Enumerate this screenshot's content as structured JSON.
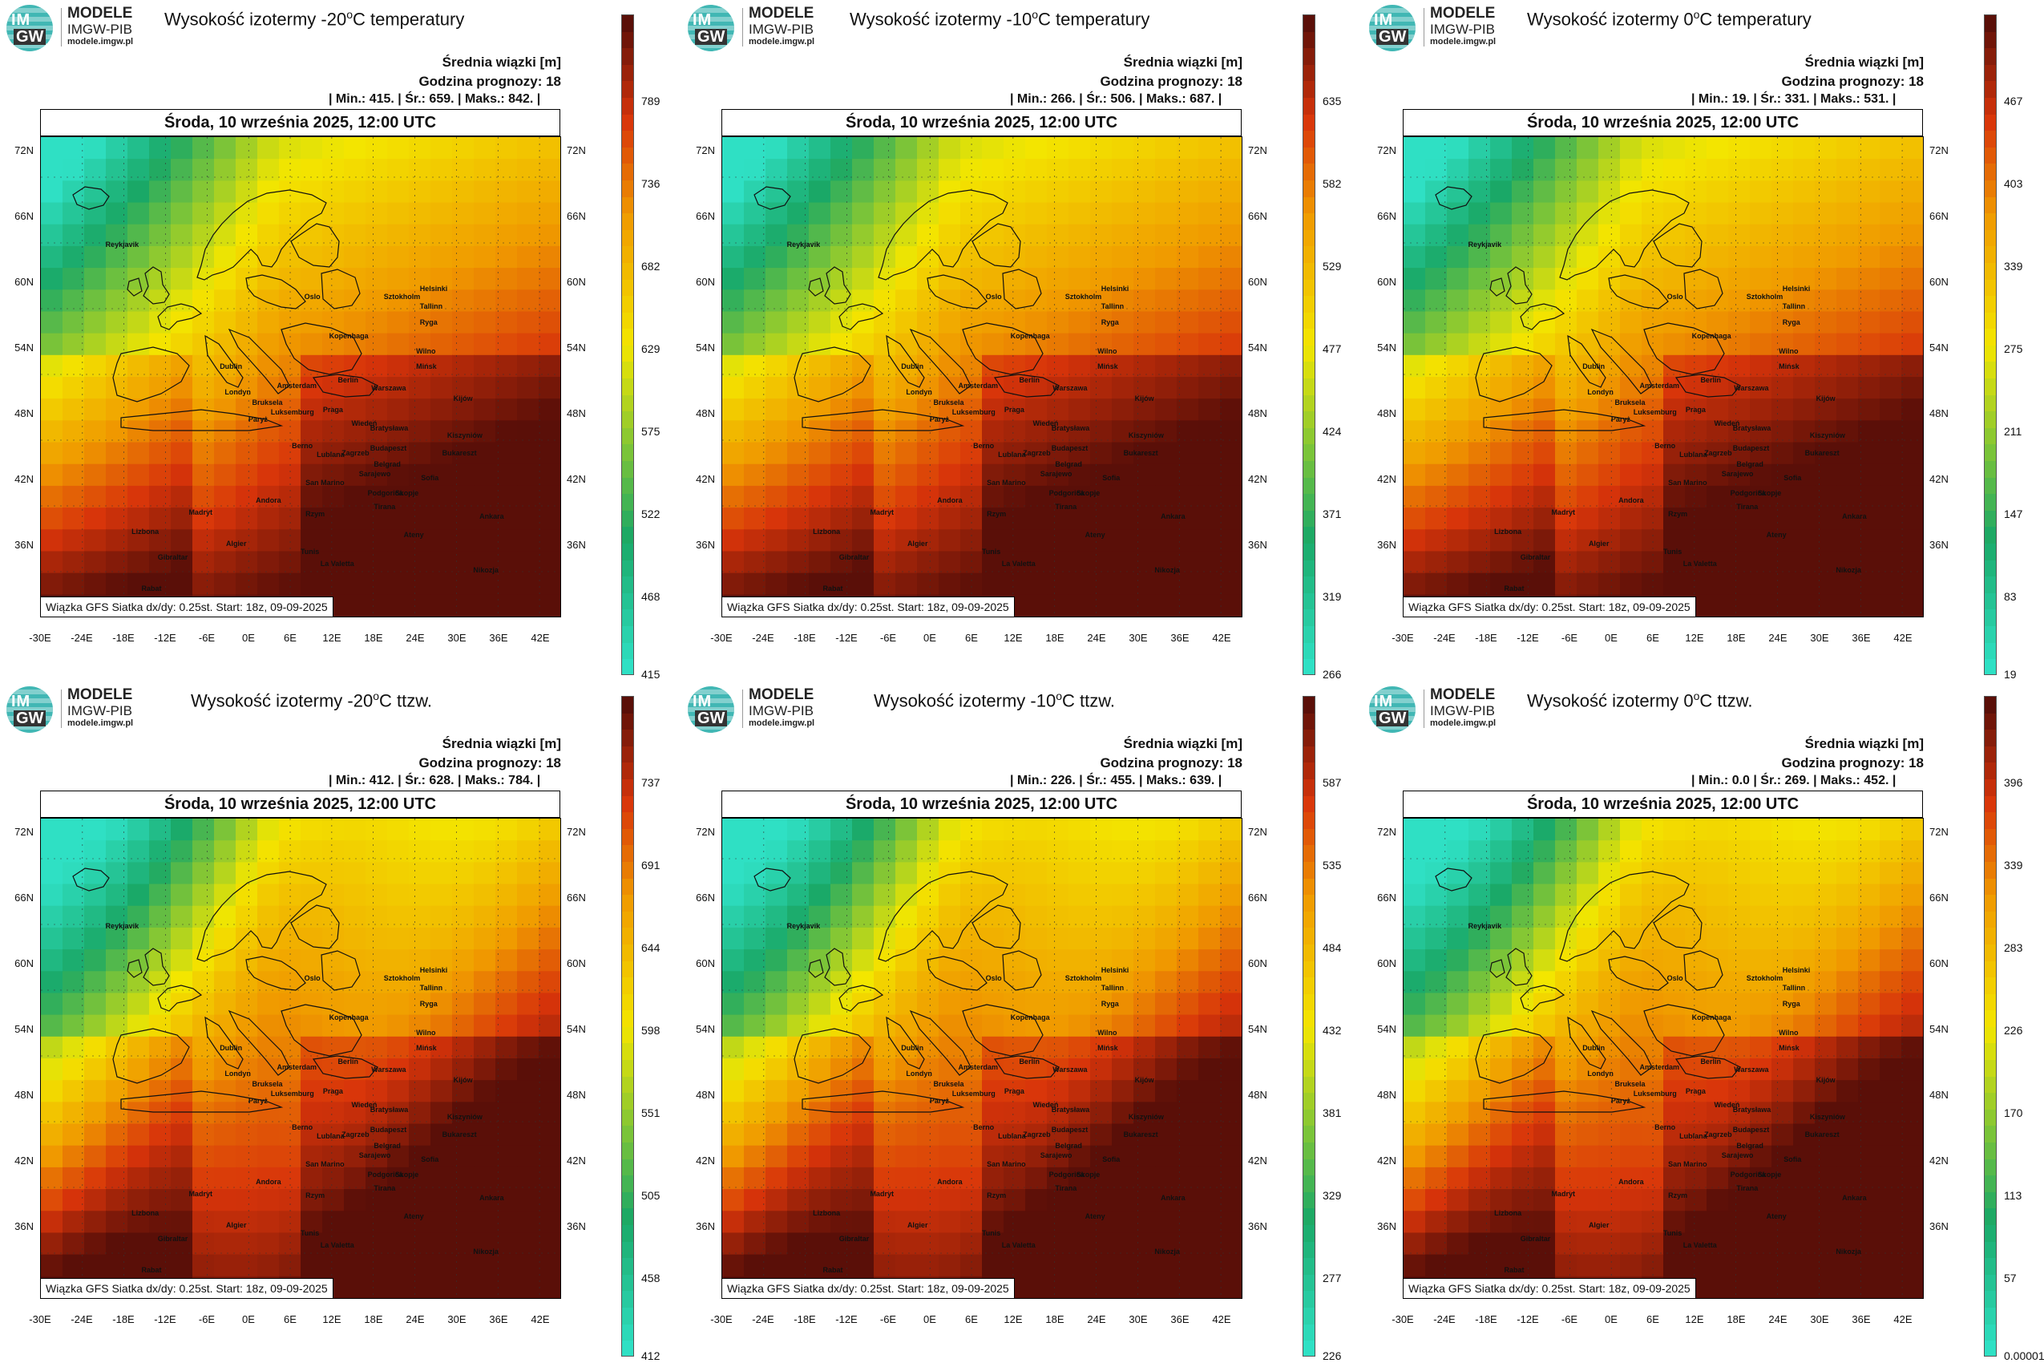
{
  "logo": {
    "line1": "MODELE",
    "line2": "IMGW-PIB",
    "line3": "modele.imgw.pl",
    "badge_top": "IM",
    "badge_bottom": "GW"
  },
  "common": {
    "meta1": "Średnia wiązki [m]",
    "meta2": "Godzina prognozy: 18",
    "date": "Środa, 10 września 2025, 12:00 UTC",
    "footnote": "Wiązka GFS Siatka dx/dy: 0.25st. Start: 18z, 09-09-2025",
    "lat_ticks": [
      "72N",
      "66N",
      "60N",
      "54N",
      "48N",
      "42N",
      "36N"
    ],
    "lon_ticks": [
      "-30E",
      "-24E",
      "-18E",
      "-12E",
      "-6E",
      "0E",
      "6E",
      "12E",
      "18E",
      "24E",
      "30E",
      "36E",
      "42E"
    ],
    "cities": [
      "Reykjavik",
      "Oslo",
      "Sztokholm",
      "Helsinki",
      "Tallinn",
      "Ryga",
      "Kopenhaga",
      "Wilno",
      "Mińsk",
      "Dublin",
      "Londyn",
      "Amsterdam",
      "Berlin",
      "Warszawa",
      "Bruksela",
      "Luksemburg",
      "Paryż",
      "Praga",
      "Kijów",
      "Wiedeń",
      "Bratysława",
      "Kiszyniów",
      "Berno",
      "Lublana",
      "Zagrzeb",
      "Budapeszt",
      "Bukareszt",
      "Belgrad",
      "Sarajewo",
      "Sofia",
      "San Marino",
      "Podgorica",
      "Skopje",
      "Tirana",
      "Andora",
      "Madryt",
      "Rzym",
      "Ateny",
      "Ankara",
      "Lizbona",
      "Gibraltar",
      "Algier",
      "Tunis",
      "La Valetta",
      "Rabat",
      "Nikozja"
    ],
    "colors": {
      "low": "#2fe0c4",
      "green": "#1aa866",
      "yellow": "#f3e600",
      "orange": "#f09a00",
      "red": "#d8340a",
      "dark": "#5a0f08"
    }
  },
  "panels": [
    {
      "title_prefix": "Wysokość izotermy -20",
      "title_suffix": "C temperatury",
      "title_sup": "o",
      "stats": "| Min.:    415. | Śr.:    659. | Maks.:    842. |",
      "cbar_ticks": [
        "789",
        "736",
        "682",
        "629",
        "575",
        "522",
        "468",
        "415"
      ]
    },
    {
      "title_prefix": "Wysokość izotermy -10",
      "title_suffix": "C temperatury",
      "title_sup": "o",
      "stats": "| Min.:    266. | Śr.:    506. | Maks.:    687. |",
      "cbar_ticks": [
        "635",
        "582",
        "529",
        "477",
        "424",
        "371",
        "319",
        "266"
      ]
    },
    {
      "title_prefix": "Wysokość izotermy 0",
      "title_suffix": "C temperatury",
      "title_sup": "o",
      "stats": "| Min.:     19. | Śr.:    331. | Maks.:    531. |",
      "cbar_ticks": [
        "467",
        "403",
        "339",
        "275",
        "211",
        "147",
        "83",
        "19"
      ]
    },
    {
      "title_prefix": "Wysokość izotermy -20",
      "title_suffix": "C ttzw.",
      "title_sup": "o",
      "stats": "| Min.:    412. | Śr.:    628. | Maks.:    784. |",
      "cbar_ticks": [
        "737",
        "691",
        "644",
        "598",
        "551",
        "505",
        "458",
        "412"
      ]
    },
    {
      "title_prefix": "Wysokość izotermy -10",
      "title_suffix": "C ttzw.",
      "title_sup": "o",
      "stats": "| Min.:    226. | Śr.:    455. | Maks.:    639. |",
      "cbar_ticks": [
        "587",
        "535",
        "484",
        "432",
        "381",
        "329",
        "277",
        "226"
      ]
    },
    {
      "title_prefix": "Wysokość izotermy 0",
      "title_suffix": "C ttzw.",
      "title_sup": "o",
      "stats": "| Min.:    0.0 | Śr.:    269. | Maks.:    452. |",
      "cbar_ticks": [
        "396",
        "339",
        "283",
        "226",
        "170",
        "113",
        "57",
        "0.00001"
      ]
    }
  ]
}
